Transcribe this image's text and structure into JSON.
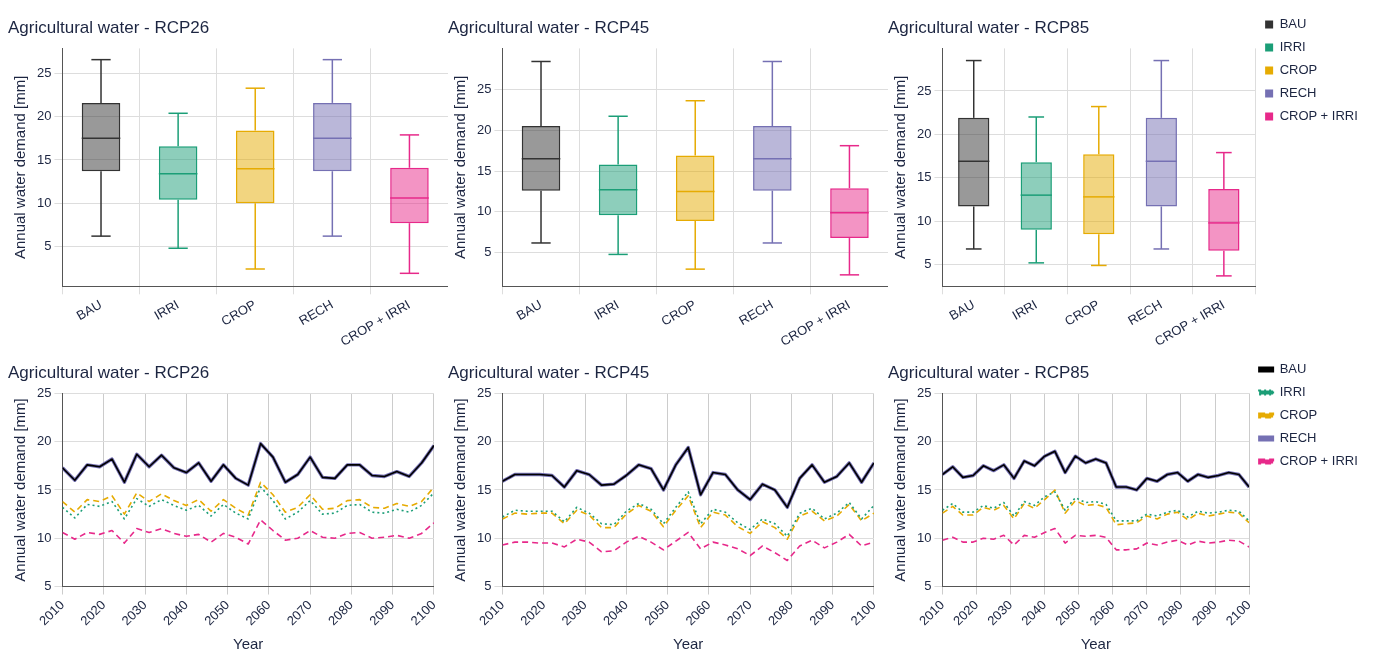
{
  "chart_data": [
    {
      "type": "box",
      "title": "Agricultural water - RCP26",
      "ylabel": "Annual water demand [mm]",
      "categories": [
        "BAU",
        "IRRI",
        "CROP",
        "RECH",
        "CROP + IRRI"
      ],
      "colors": [
        "#333333",
        "#1b9e77",
        "#e6ab02",
        "#7570b3",
        "#e7298a"
      ],
      "ylim": [
        0.4,
        27.9
      ],
      "yticks": [
        5,
        10,
        15,
        20,
        25
      ],
      "grid": true,
      "boxes": [
        {
          "low": 6.2,
          "q1": 13.7,
          "median": 17.5,
          "q3": 21.6,
          "high": 26.6
        },
        {
          "low": 4.8,
          "q1": 10.4,
          "median": 13.4,
          "q3": 16.6,
          "high": 20.4
        },
        {
          "low": 2.4,
          "q1": 10.0,
          "median": 14.0,
          "q3": 18.4,
          "high": 23.3
        },
        {
          "low": 6.2,
          "q1": 13.7,
          "median": 17.5,
          "q3": 21.6,
          "high": 26.6
        },
        {
          "low": 1.9,
          "q1": 7.7,
          "median": 10.6,
          "q3": 14.1,
          "high": 17.9
        }
      ]
    },
    {
      "type": "box",
      "title": "Agricultural water - RCP45",
      "ylabel": "Annual water demand [mm]",
      "categories": [
        "BAU",
        "IRRI",
        "CROP",
        "RECH",
        "CROP + IRRI"
      ],
      "colors": [
        "#333333",
        "#1b9e77",
        "#e6ab02",
        "#7570b3",
        "#e7298a"
      ],
      "ylim": [
        0.9,
        30
      ],
      "yticks": [
        5,
        10,
        15,
        20,
        25
      ],
      "grid": true,
      "boxes": [
        {
          "low": 6.2,
          "q1": 12.6,
          "median": 16.5,
          "q3": 20.5,
          "high": 28.4
        },
        {
          "low": 4.8,
          "q1": 9.6,
          "median": 12.7,
          "q3": 15.8,
          "high": 21.7
        },
        {
          "low": 3.0,
          "q1": 8.9,
          "median": 12.5,
          "q3": 16.9,
          "high": 23.6
        },
        {
          "low": 6.2,
          "q1": 12.6,
          "median": 16.5,
          "q3": 20.5,
          "high": 28.4
        },
        {
          "low": 2.3,
          "q1": 6.8,
          "median": 9.9,
          "q3": 12.9,
          "high": 18.1
        }
      ]
    },
    {
      "type": "box",
      "title": "Agricultural water - RCP85",
      "ylabel": "Annual water demand [mm]",
      "categories": [
        "BAU",
        "IRRI",
        "CROP",
        "RECH",
        "CROP + IRRI"
      ],
      "ylim": [
        2.5,
        29.9
      ],
      "yticks": [
        5,
        10,
        15,
        20,
        25
      ],
      "grid": true,
      "legend": "right",
      "series": [
        {
          "name": "BAU",
          "color": "#333333",
          "boxes": [
            {
              "low": 6.8,
              "q1": 11.7,
              "median": 16.9,
              "q3": 21.9,
              "high": 28.5
            },
            null,
            null,
            null,
            null
          ]
        },
        {
          "name": "IRRI",
          "color": "#1b9e77",
          "boxes": [
            null,
            {
              "low": 5.2,
              "q1": 9.0,
              "median": 13.0,
              "q3": 16.8,
              "high": 22.0
            },
            null,
            null,
            null
          ]
        },
        {
          "name": "CROP",
          "color": "#e6ab02",
          "boxes": [
            null,
            null,
            {
              "low": 4.9,
              "q1": 8.5,
              "median": 12.8,
              "q3": 17.7,
              "high": 23.2
            },
            null,
            null
          ]
        },
        {
          "name": "RECH",
          "color": "#7570b3",
          "boxes": [
            null,
            null,
            null,
            {
              "low": 6.8,
              "q1": 11.7,
              "median": 16.9,
              "q3": 21.9,
              "high": 28.5
            },
            null
          ]
        },
        {
          "name": "CROP + IRRI",
          "color": "#e7298a",
          "boxes": [
            null,
            null,
            null,
            null,
            {
              "low": 3.7,
              "q1": 6.6,
              "median": 9.8,
              "q3": 13.7,
              "high": 17.9
            }
          ]
        }
      ]
    },
    {
      "type": "line",
      "title": "Agricultural water - RCP26",
      "xlabel": "Year",
      "ylabel": "Annual water demand [mm]",
      "xlim": [
        2010,
        2100
      ],
      "xticks": [
        2010,
        2020,
        2030,
        2040,
        2050,
        2060,
        2070,
        2080,
        2090,
        2100
      ],
      "ylim": [
        5,
        25
      ],
      "yticks": [
        5,
        10,
        15,
        20,
        25
      ],
      "grid": true,
      "marker": "none",
      "x": [
        2010,
        2013,
        2016,
        2019,
        2022,
        2025,
        2028,
        2031,
        2034,
        2037,
        2040,
        2043,
        2046,
        2049,
        2052,
        2055,
        2058,
        2061,
        2064,
        2067,
        2070,
        2073,
        2076,
        2079,
        2082,
        2085,
        2088,
        2091,
        2094,
        2097,
        2100
      ],
      "series": [
        {
          "color": "#000000",
          "line_style": "solid",
          "values": [
            17.3,
            16.0,
            17.6,
            17.4,
            18.2,
            15.8,
            18.7,
            17.4,
            18.6,
            17.3,
            16.8,
            17.8,
            15.9,
            17.6,
            16.2,
            15.5,
            19.8,
            18.4,
            15.8,
            16.6,
            18.4,
            16.3,
            16.2,
            17.6,
            17.6,
            16.5,
            16.4,
            16.9,
            16.4,
            17.8,
            19.6
          ]
        },
        {
          "color": "#1b9e77",
          "line_style": "dotted",
          "values": [
            13.2,
            12.1,
            13.5,
            13.3,
            13.8,
            12.0,
            14.1,
            13.3,
            14.0,
            13.4,
            12.9,
            13.4,
            12.3,
            13.5,
            12.6,
            12.0,
            15.3,
            13.9,
            12.0,
            12.7,
            13.9,
            12.5,
            12.6,
            13.4,
            13.5,
            12.7,
            12.6,
            13.0,
            12.7,
            13.4,
            14.7
          ]
        },
        {
          "color": "#e6ab02",
          "line_style": "dashed",
          "values": [
            13.8,
            12.7,
            14.0,
            13.8,
            14.4,
            12.5,
            14.7,
            13.8,
            14.6,
            13.9,
            13.4,
            14.0,
            12.8,
            14.0,
            13.1,
            12.4,
            15.8,
            14.5,
            12.7,
            13.2,
            14.5,
            13.0,
            13.1,
            13.9,
            14.0,
            13.2,
            13.1,
            13.6,
            13.3,
            13.8,
            15.3
          ]
        },
        {
          "color": "#7570b3",
          "line_style": "solid",
          "values": [
            17.3,
            16.0,
            17.6,
            17.4,
            18.2,
            15.8,
            18.7,
            17.4,
            18.6,
            17.3,
            16.8,
            17.8,
            15.9,
            17.6,
            16.2,
            15.5,
            19.8,
            18.4,
            15.8,
            16.6,
            18.4,
            16.3,
            16.2,
            17.6,
            17.6,
            16.5,
            16.4,
            16.9,
            16.4,
            17.8,
            19.6
          ]
        },
        {
          "color": "#e7298a",
          "line_style": "dashed",
          "values": [
            10.6,
            9.9,
            10.6,
            10.4,
            10.8,
            9.5,
            11.0,
            10.6,
            11.0,
            10.5,
            10.2,
            10.4,
            9.6,
            10.5,
            10.1,
            9.4,
            11.9,
            10.8,
            9.8,
            10.0,
            10.8,
            10.1,
            10.0,
            10.5,
            10.6,
            10.0,
            10.1,
            10.3,
            10.0,
            10.5,
            11.6
          ]
        }
      ]
    },
    {
      "type": "line",
      "title": "Agricultural water - RCP45",
      "xlabel": "Year",
      "ylabel": "Annual water demand [mm]",
      "xlim": [
        2010,
        2100
      ],
      "xticks": [
        2010,
        2020,
        2030,
        2040,
        2050,
        2060,
        2070,
        2080,
        2090,
        2100
      ],
      "ylim": [
        5,
        25
      ],
      "yticks": [
        5,
        10,
        15,
        20,
        25
      ],
      "grid": true,
      "marker": "none",
      "x": [
        2010,
        2013,
        2016,
        2019,
        2022,
        2025,
        2028,
        2031,
        2034,
        2037,
        2040,
        2043,
        2046,
        2049,
        2052,
        2055,
        2058,
        2061,
        2064,
        2067,
        2070,
        2073,
        2076,
        2079,
        2082,
        2085,
        2088,
        2091,
        2094,
        2097,
        2100
      ],
      "series": [
        {
          "color": "#000000",
          "line_style": "solid",
          "values": [
            15.9,
            16.6,
            16.6,
            16.6,
            16.5,
            15.3,
            17.0,
            16.6,
            15.5,
            15.6,
            16.5,
            17.6,
            17.2,
            15.0,
            17.6,
            19.4,
            14.5,
            16.8,
            16.6,
            15.0,
            14.0,
            15.6,
            15.0,
            13.2,
            16.2,
            17.6,
            15.8,
            16.4,
            17.8,
            15.8,
            17.8
          ]
        },
        {
          "color": "#1b9e77",
          "line_style": "dotted",
          "values": [
            12.2,
            12.9,
            12.8,
            12.8,
            12.8,
            11.7,
            13.2,
            12.6,
            11.5,
            11.4,
            12.8,
            13.6,
            13.0,
            11.5,
            13.2,
            14.8,
            11.5,
            13.0,
            12.7,
            11.6,
            10.9,
            12.0,
            11.5,
            10.2,
            12.6,
            13.1,
            12.0,
            12.6,
            13.7,
            12.0,
            13.4
          ]
        },
        {
          "color": "#e6ab02",
          "line_style": "dashed",
          "values": [
            12.0,
            12.6,
            12.5,
            12.6,
            12.6,
            11.5,
            12.9,
            12.4,
            11.1,
            11.1,
            12.5,
            13.4,
            12.8,
            11.2,
            12.9,
            14.4,
            11.1,
            12.7,
            12.4,
            11.2,
            10.5,
            11.7,
            11.1,
            9.9,
            12.3,
            12.8,
            11.8,
            12.3,
            13.5,
            11.8,
            12.6
          ]
        },
        {
          "color": "#7570b3",
          "line_style": "solid",
          "values": [
            15.9,
            16.6,
            16.6,
            16.6,
            16.5,
            15.3,
            17.0,
            16.6,
            15.5,
            15.6,
            16.5,
            17.6,
            17.2,
            15.0,
            17.6,
            19.4,
            14.5,
            16.8,
            16.6,
            15.0,
            14.0,
            15.6,
            15.0,
            13.2,
            16.2,
            17.6,
            15.8,
            16.4,
            17.8,
            15.8,
            17.8
          ]
        },
        {
          "color": "#e7298a",
          "line_style": "dashed",
          "values": [
            9.3,
            9.6,
            9.6,
            9.5,
            9.5,
            9.1,
            9.9,
            9.6,
            8.6,
            8.7,
            9.6,
            10.2,
            9.6,
            8.8,
            9.7,
            10.6,
            8.9,
            9.6,
            9.3,
            8.9,
            8.2,
            9.2,
            8.5,
            7.7,
            9.2,
            9.8,
            9.0,
            9.6,
            10.4,
            9.2,
            9.6
          ]
        }
      ]
    },
    {
      "type": "line",
      "title": "Agricultural water - RCP85",
      "xlabel": "Year",
      "ylabel": "Annual water demand [mm]",
      "xlim": [
        2010,
        2100
      ],
      "xticks": [
        2010,
        2020,
        2030,
        2040,
        2050,
        2060,
        2070,
        2080,
        2090,
        2100
      ],
      "ylim": [
        5,
        25
      ],
      "yticks": [
        5,
        10,
        15,
        20,
        25
      ],
      "grid": true,
      "marker": "none",
      "legend": "right",
      "x": [
        2010,
        2013,
        2016,
        2019,
        2022,
        2025,
        2028,
        2031,
        2034,
        2037,
        2040,
        2043,
        2046,
        2049,
        2052,
        2055,
        2058,
        2061,
        2064,
        2067,
        2070,
        2073,
        2076,
        2079,
        2082,
        2085,
        2088,
        2091,
        2094,
        2097,
        2100
      ],
      "series": [
        {
          "name": "BAU",
          "color": "#000000",
          "line_style": "solid",
          "values": [
            16.6,
            17.4,
            16.3,
            16.5,
            17.5,
            17.0,
            17.6,
            16.2,
            18.0,
            17.5,
            18.5,
            19.0,
            16.8,
            18.5,
            17.8,
            18.2,
            17.8,
            15.3,
            15.3,
            15.0,
            16.2,
            15.9,
            16.6,
            16.8,
            15.9,
            16.6,
            16.3,
            16.5,
            16.8,
            16.6,
            15.3
          ]
        },
        {
          "name": "IRRI",
          "color": "#1b9e77",
          "line_style": "dotted",
          "values": [
            12.9,
            13.6,
            12.7,
            12.7,
            13.4,
            13.1,
            13.7,
            12.3,
            13.8,
            13.4,
            14.3,
            14.8,
            12.9,
            14.2,
            13.7,
            13.8,
            13.5,
            11.8,
            11.8,
            11.8,
            12.5,
            12.3,
            12.7,
            12.9,
            12.2,
            12.8,
            12.6,
            12.7,
            12.9,
            12.8,
            11.8
          ]
        },
        {
          "name": "CROP",
          "color": "#e6ab02",
          "line_style": "dashed",
          "values": [
            12.6,
            13.3,
            12.4,
            12.4,
            13.2,
            12.9,
            13.4,
            12.0,
            13.6,
            13.1,
            14.0,
            15.0,
            12.6,
            13.9,
            13.4,
            13.5,
            13.2,
            11.4,
            11.5,
            11.6,
            12.3,
            12.0,
            12.5,
            12.7,
            11.9,
            12.6,
            12.3,
            12.5,
            12.7,
            12.6,
            11.6
          ]
        },
        {
          "name": "RECH",
          "color": "#7570b3",
          "line_style": "solid",
          "values": [
            16.6,
            17.4,
            16.3,
            16.5,
            17.5,
            17.0,
            17.6,
            16.2,
            18.0,
            17.5,
            18.5,
            19.0,
            16.8,
            18.5,
            17.8,
            18.2,
            17.8,
            15.3,
            15.3,
            15.0,
            16.2,
            15.9,
            16.6,
            16.8,
            15.9,
            16.6,
            16.3,
            16.5,
            16.8,
            16.6,
            15.3
          ]
        },
        {
          "name": "CROP + IRRI",
          "color": "#e7298a",
          "line_style": "dashed",
          "values": [
            9.8,
            10.1,
            9.6,
            9.6,
            10.0,
            9.9,
            10.3,
            9.3,
            10.3,
            10.1,
            10.6,
            11.0,
            9.5,
            10.3,
            10.2,
            10.3,
            10.1,
            8.8,
            8.8,
            8.9,
            9.5,
            9.3,
            9.6,
            9.8,
            9.3,
            9.7,
            9.5,
            9.6,
            9.8,
            9.7,
            9.1
          ]
        }
      ]
    }
  ]
}
